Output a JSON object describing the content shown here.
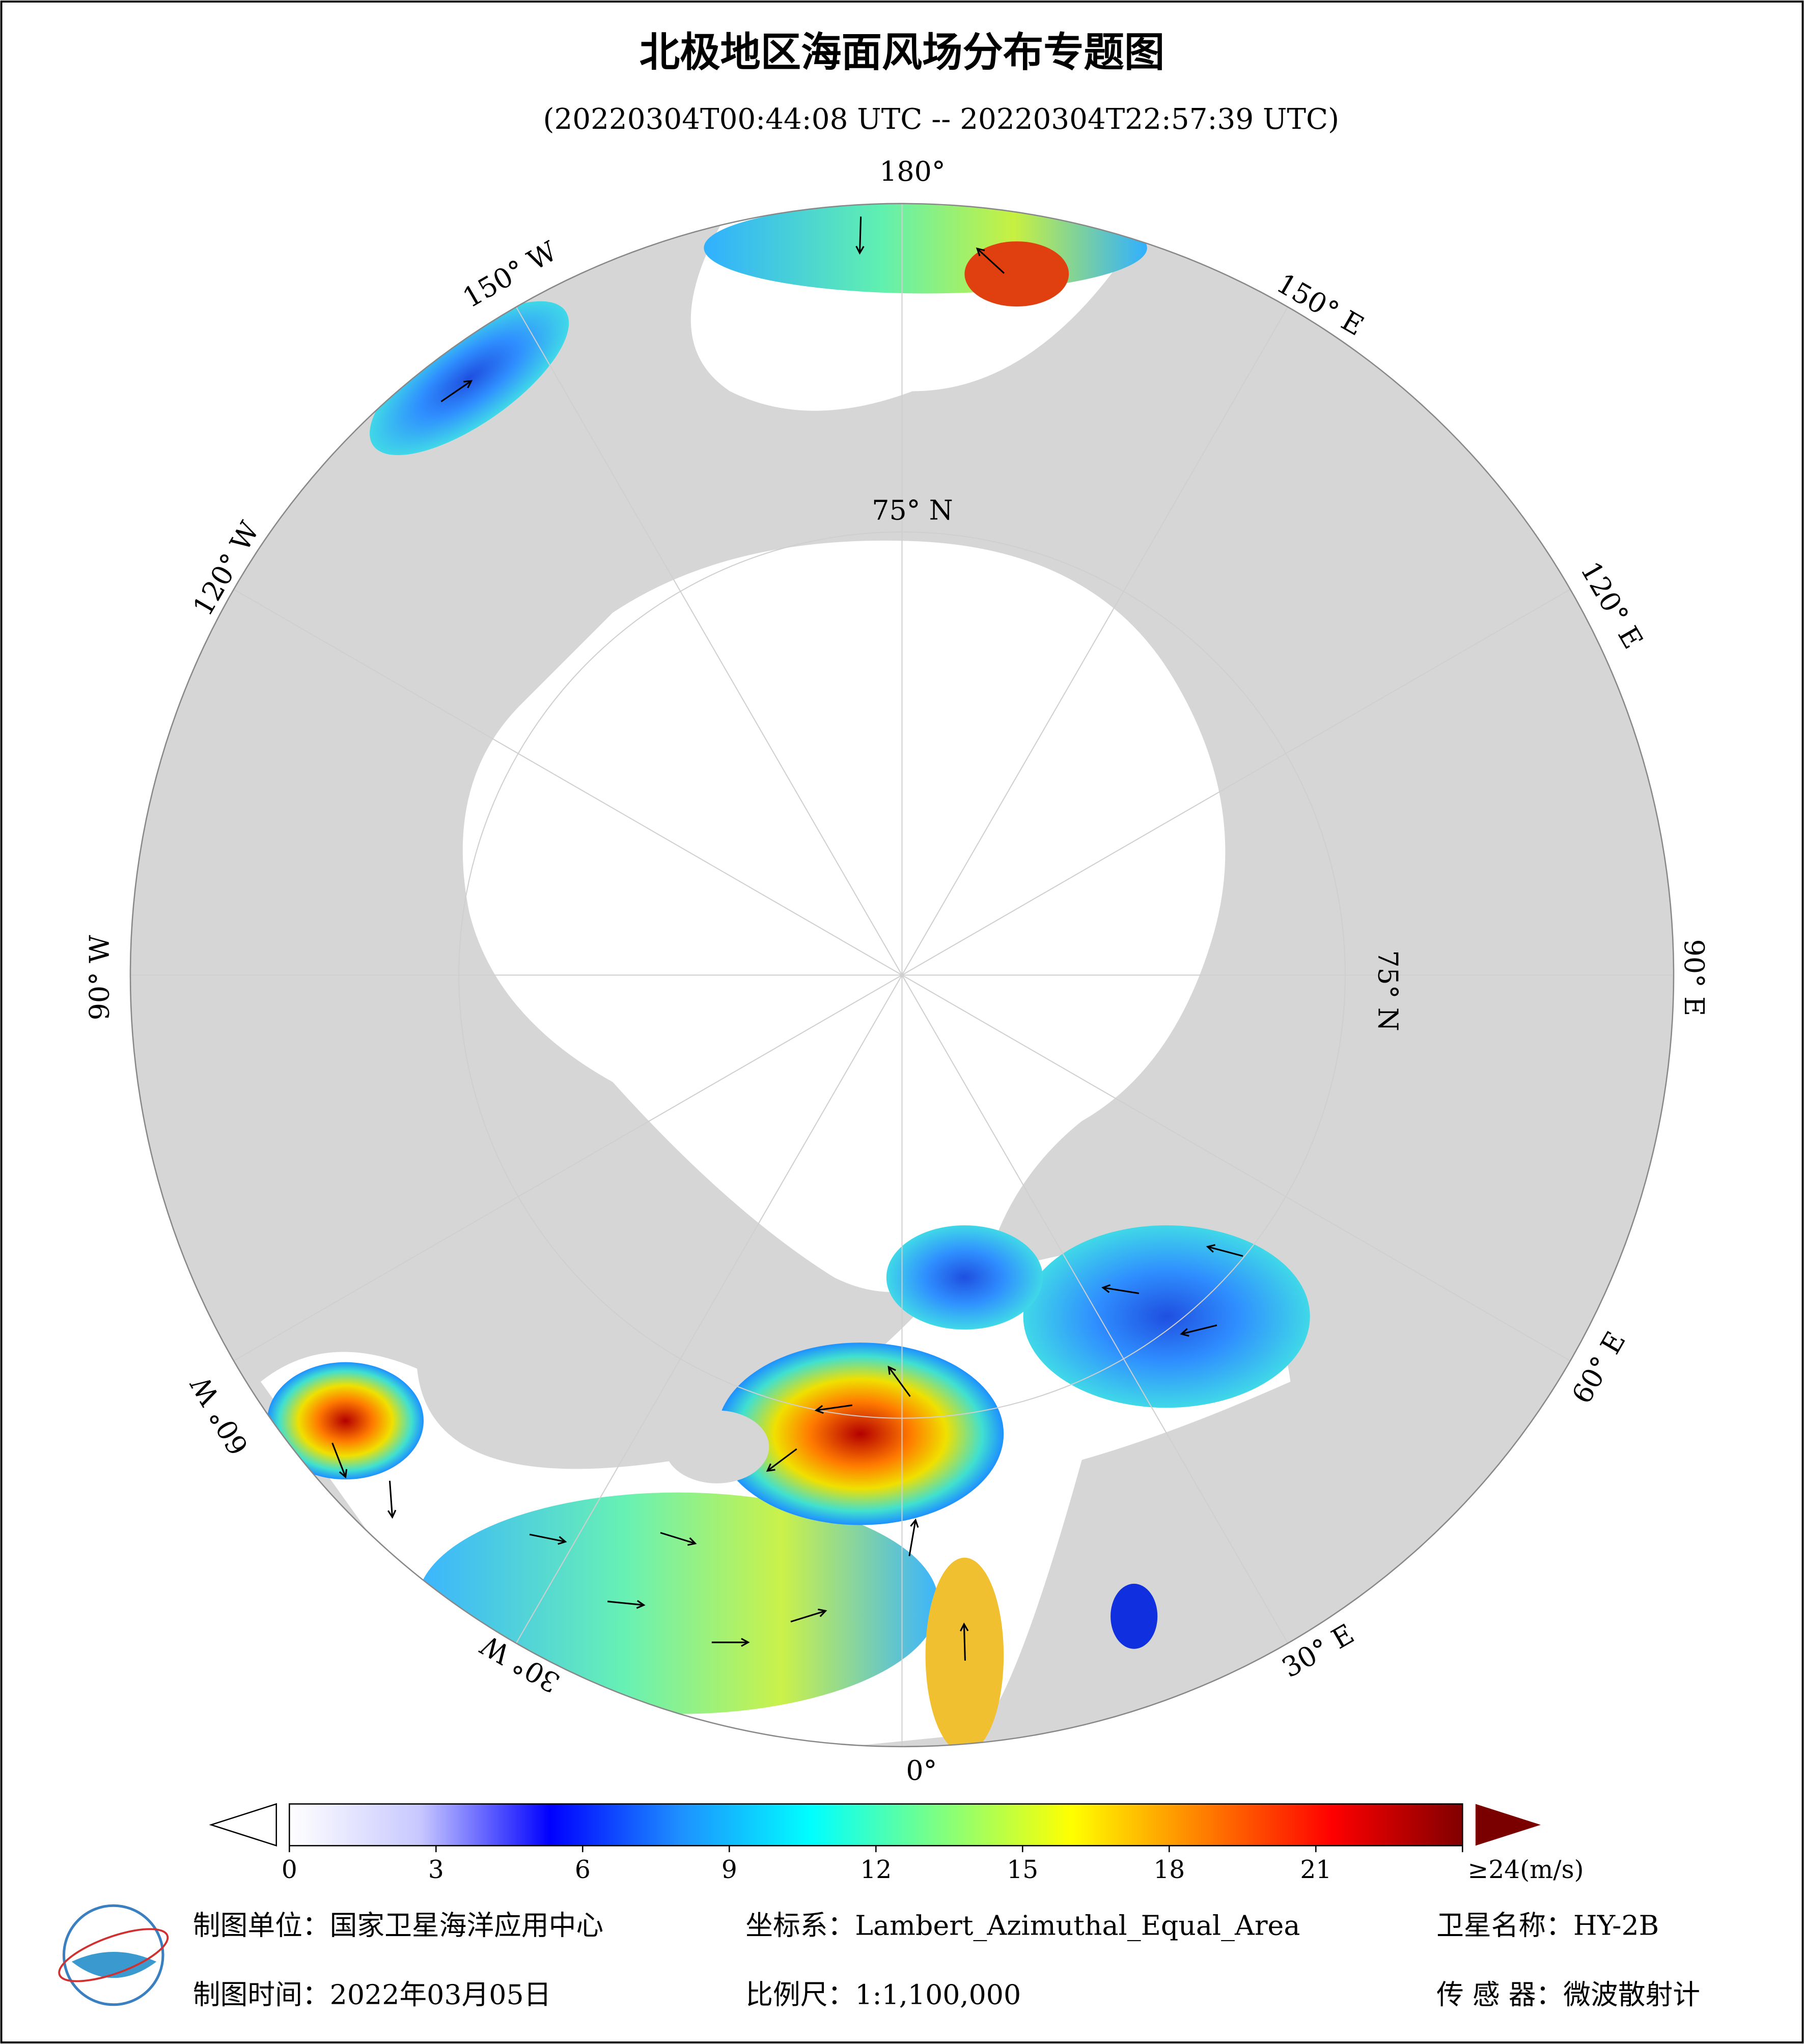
{
  "header": {
    "title": "北极地区海面风场分布专题图",
    "time_range": "(20220304T00:44:08 UTC -- 20220304T22:57:39 UTC)"
  },
  "map": {
    "lon_labels": [
      "180°",
      "150° E",
      "120° E",
      "90° E",
      "60° E",
      "30° E",
      "0°",
      "30° W",
      "60° W",
      "90° W",
      "120° W",
      "150° W"
    ],
    "lat_label": "75° N"
  },
  "colorbar": {
    "range": [
      0,
      24
    ],
    "ticks": [
      0,
      3,
      6,
      9,
      12,
      15,
      18,
      21,
      {
        "value": 24,
        "label": "≥24(m/s)"
      }
    ],
    "colors": [
      "#ffffff",
      "#c8c8ff",
      "#0000ff",
      "#1e90ff",
      "#00ffff",
      "#80ff80",
      "#ffff00",
      "#ff8000",
      "#ff0000",
      "#800000"
    ]
  },
  "footer": [
    "制图单位：国家卫星海洋应用中心",
    "坐标系：Lambert_Azimuthal_Equal_Area",
    "卫星名称：HY-2B",
    "制图时间：2022年03月05日",
    "比例尺：1:1,100,000",
    "传 感 器：微波散射计"
  ]
}
